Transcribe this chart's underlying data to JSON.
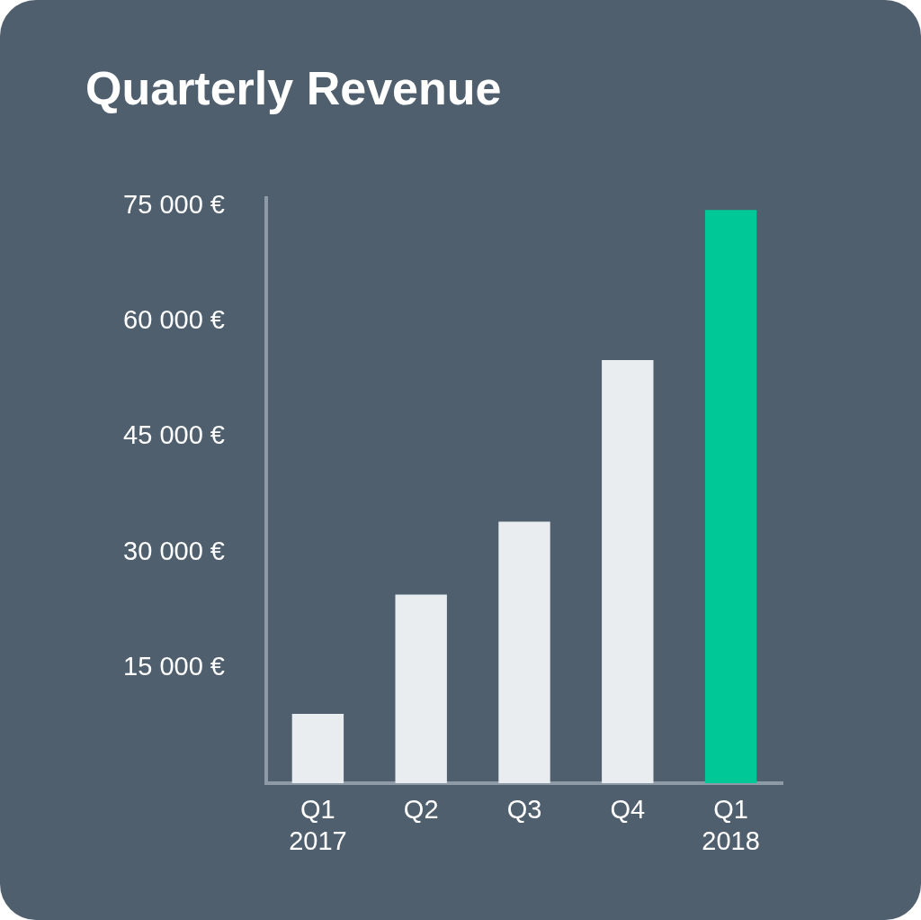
{
  "chart_data": {
    "type": "bar",
    "title": "Quarterly Revenue",
    "categories": [
      "Q1 2017",
      "Q2",
      "Q3",
      "Q4",
      "Q1 2018"
    ],
    "values": [
      9000,
      24500,
      34000,
      55000,
      74500
    ],
    "colors": [
      "#e9edf0",
      "#e9edf0",
      "#e9edf0",
      "#e9edf0",
      "#00c896"
    ],
    "ylim": [
      0,
      76000
    ],
    "yticks": [
      {
        "value": 15000,
        "label": "15 000 €"
      },
      {
        "value": 30000,
        "label": "30 000 €"
      },
      {
        "value": 45000,
        "label": "45 000 €"
      },
      {
        "value": 60000,
        "label": "60 000 €"
      },
      {
        "value": 75000,
        "label": "75 000 €"
      }
    ],
    "grid": false
  }
}
